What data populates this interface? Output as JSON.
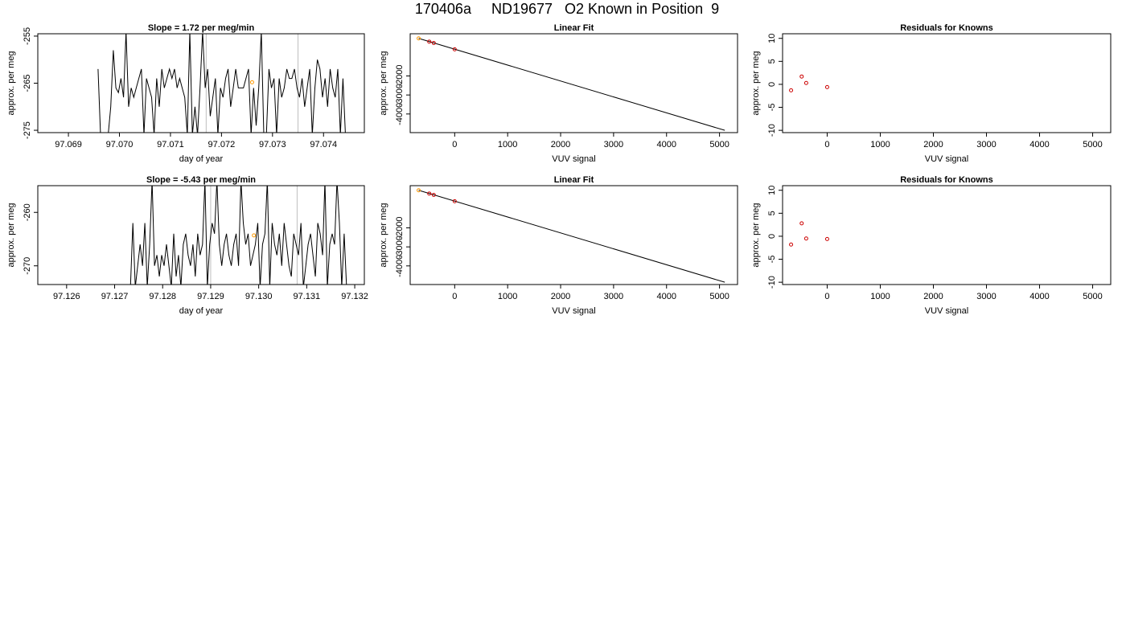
{
  "figure": {
    "title": "170406a     ND19677   O2 Known in Position  9",
    "colors": {
      "line": "#000000",
      "point_known": "#cc0000",
      "point_highlight": "#ff9900",
      "vline": "#bebebe"
    }
  },
  "chart_data": [
    {
      "type": "line",
      "title": "Slope =  1.72  per meg/min",
      "xlabel": "day of year",
      "ylabel": "approx. per meg",
      "xlim": [
        97.0684,
        97.0748
      ],
      "ylim": [
        -275.5,
        -254.5
      ],
      "xticks": [
        "97.069",
        "97.070",
        "97.071",
        "97.072",
        "97.073",
        "97.074"
      ],
      "xtick_values": [
        97.069,
        97.07,
        97.071,
        97.072,
        97.073,
        97.074
      ],
      "yticks": [
        "-255",
        "-265",
        "-275"
      ],
      "ytick_values": [
        -255,
        -265,
        -275
      ],
      "vlines": [
        97.0717,
        97.0735
      ],
      "highlight_point": [
        97.0726,
        -264.8
      ],
      "series": [
        {
          "x": [
            97.06958,
            97.06963,
            97.06968,
            97.06973,
            97.06978,
            97.06983,
            97.06988,
            97.06993,
            97.06998,
            97.07003,
            97.07008,
            97.07013,
            97.07018,
            97.07023,
            97.07028,
            97.07033,
            97.07038,
            97.07043,
            97.07048,
            97.07053,
            97.07058,
            97.07063,
            97.07068,
            97.07073,
            97.07078,
            97.07083,
            97.07088,
            97.07093,
            97.07098,
            97.07103,
            97.07108,
            97.07113,
            97.07118,
            97.07123,
            97.07128,
            97.07133,
            97.07138,
            97.07143,
            97.07148,
            97.07153,
            97.07158,
            97.07163,
            97.07168,
            97.07173,
            97.07178,
            97.07183,
            97.07188,
            97.07193,
            97.07198,
            97.07203,
            97.07208,
            97.07213,
            97.07218,
            97.07223,
            97.07228,
            97.07233,
            97.07238,
            97.07243,
            97.07248,
            97.07253,
            97.07258,
            97.07263,
            97.07268,
            97.07273,
            97.07278,
            97.07283,
            97.07288,
            97.07293,
            97.07298,
            97.07303,
            97.07308,
            97.07313,
            97.07318,
            97.07323,
            97.07328,
            97.07333,
            97.07338,
            97.07343,
            97.07348,
            97.07353,
            97.07358,
            97.07363,
            97.07368,
            97.07373,
            97.07378,
            97.07383,
            97.07388,
            97.07393,
            97.07398,
            97.07403,
            97.07408,
            97.07413,
            97.07418,
            97.07423,
            97.07428,
            97.07433,
            97.07438,
            97.07443,
            97.07448
          ],
          "y": [
            -262,
            -276,
            -276,
            -276,
            -276,
            -270,
            -258,
            -266,
            -267,
            -264,
            -268,
            -254,
            -270,
            -266,
            -268,
            -266,
            -264,
            -262,
            -276,
            -264,
            -266,
            -268,
            -276,
            -264,
            -270,
            -262,
            -266,
            -264,
            -262,
            -264,
            -262,
            -266,
            -264,
            -266,
            -268,
            -276,
            -254,
            -276,
            -270,
            -276,
            -266,
            -254,
            -266,
            -262,
            -272,
            -268,
            -264,
            -276,
            -266,
            -268,
            -264,
            -262,
            -270,
            -266,
            -262,
            -266,
            -266,
            -266,
            -264,
            -262,
            -276,
            -266,
            -274,
            -266,
            -254,
            -276,
            -276,
            -262,
            -266,
            -264,
            -276,
            -264,
            -268,
            -266,
            -262,
            -264,
            -264,
            -262,
            -266,
            -268,
            -264,
            -270,
            -266,
            -262,
            -276,
            -266,
            -260,
            -262,
            -268,
            -264,
            -270,
            -262,
            -266,
            -268,
            -262,
            -276,
            -264,
            -276,
            -276
          ]
        }
      ]
    },
    {
      "type": "scatter",
      "title": "Linear Fit",
      "xlabel": "VUV signal",
      "ylabel": "approx. per meg",
      "xlim": [
        -840,
        5340
      ],
      "ylim": [
        -4980,
        220
      ],
      "xticks": [
        "0",
        "1000",
        "2000",
        "3000",
        "4000",
        "5000"
      ],
      "xtick_values": [
        0,
        1000,
        2000,
        3000,
        4000,
        5000
      ],
      "yticks": [
        "-2000",
        "-3000",
        "-4000"
      ],
      "ytick_values": [
        -2000,
        -3000,
        -4000
      ],
      "fit_line": [
        [
          -680,
          -23
        ],
        [
          5100,
          -4860
        ]
      ],
      "points": [
        [
          -480,
          -195
        ],
        [
          -395,
          -265
        ],
        [
          0,
          -600
        ]
      ],
      "highlight_point": [
        -680,
        -23
      ]
    },
    {
      "type": "scatter",
      "title": "Residuals for Knowns",
      "xlabel": "VUV signal",
      "ylabel": "approx. per meg",
      "xlim": [
        -840,
        5340
      ],
      "ylim": [
        -10.5,
        11
      ],
      "xticks": [
        "0",
        "1000",
        "2000",
        "3000",
        "4000",
        "5000"
      ],
      "xtick_values": [
        0,
        1000,
        2000,
        3000,
        4000,
        5000
      ],
      "yticks": [
        "-10",
        "-5",
        "0",
        "5",
        "10"
      ],
      "ytick_values": [
        -10,
        -5,
        0,
        5,
        10
      ],
      "points": [
        [
          -680,
          -1.3
        ],
        [
          -480,
          1.7
        ],
        [
          -395,
          0.3
        ],
        [
          0,
          -0.6
        ]
      ]
    },
    {
      "type": "line",
      "title": "Slope =  -5.43  per meg/min",
      "xlabel": "day of year",
      "ylabel": "approx. per meg",
      "xlim": [
        97.1254,
        97.1322
      ],
      "ylim": [
        -273.5,
        -255
      ],
      "xticks": [
        "97.126",
        "97.127",
        "97.128",
        "97.129",
        "97.130",
        "97.131",
        "97.132"
      ],
      "xtick_values": [
        97.126,
        97.127,
        97.128,
        97.129,
        97.13,
        97.131,
        97.132
      ],
      "yticks": [
        "-260",
        "-270"
      ],
      "ytick_values": [
        -260,
        -270
      ],
      "vlines": [
        97.129,
        97.1308
      ],
      "highlight_point": [
        97.1299,
        -264.3
      ],
      "series": [
        {
          "x": [
            97.12728,
            97.12733,
            97.12738,
            97.12743,
            97.12748,
            97.12753,
            97.12758,
            97.12763,
            97.12768,
            97.12773,
            97.12778,
            97.12783,
            97.12788,
            97.12793,
            97.12798,
            97.12803,
            97.12808,
            97.12813,
            97.12818,
            97.12823,
            97.12828,
            97.12833,
            97.12838,
            97.12843,
            97.12848,
            97.12853,
            97.12858,
            97.12863,
            97.12868,
            97.12873,
            97.12878,
            97.12883,
            97.12888,
            97.12893,
            97.12898,
            97.12903,
            97.12908,
            97.12913,
            97.12918,
            97.12923,
            97.12928,
            97.12933,
            97.12938,
            97.12943,
            97.12948,
            97.12953,
            97.12958,
            97.12963,
            97.12968,
            97.12973,
            97.12978,
            97.12983,
            97.12988,
            97.12993,
            97.12998,
            97.13003,
            97.13008,
            97.13013,
            97.13018,
            97.13023,
            97.13028,
            97.13033,
            97.13038,
            97.13043,
            97.13048,
            97.13053,
            97.13058,
            97.13063,
            97.13068,
            97.13073,
            97.13078,
            97.13083,
            97.13088,
            97.13093,
            97.13098,
            97.13103,
            97.13108,
            97.13113,
            97.13118,
            97.13123,
            97.13128,
            97.13133,
            97.13138,
            97.13143,
            97.13148,
            97.13153,
            97.13158,
            97.13163,
            97.13168,
            97.13173,
            97.13178,
            97.13183
          ],
          "y": [
            -274,
            -274,
            -262,
            -274,
            -270,
            -266,
            -270,
            -262,
            -274,
            -266,
            -254,
            -270,
            -268,
            -272,
            -268,
            -270,
            -266,
            -270,
            -274,
            -264,
            -272,
            -268,
            -274,
            -266,
            -264,
            -268,
            -270,
            -266,
            -272,
            -264,
            -268,
            -266,
            -254,
            -274,
            -266,
            -262,
            -264,
            -254,
            -266,
            -270,
            -266,
            -264,
            -268,
            -270,
            -266,
            -264,
            -270,
            -254,
            -262,
            -266,
            -264,
            -270,
            -268,
            -266,
            -262,
            -274,
            -266,
            -264,
            -254,
            -274,
            -262,
            -266,
            -268,
            -264,
            -270,
            -262,
            -266,
            -270,
            -272,
            -264,
            -266,
            -268,
            -262,
            -274,
            -270,
            -266,
            -264,
            -268,
            -272,
            -262,
            -264,
            -268,
            -254,
            -274,
            -266,
            -264,
            -266,
            -254,
            -262,
            -274,
            -264,
            -274
          ]
        }
      ]
    },
    {
      "type": "scatter",
      "title": "Linear Fit",
      "xlabel": "VUV signal",
      "ylabel": "approx. per meg",
      "xlim": [
        -840,
        5340
      ],
      "ylim": [
        -4980,
        220
      ],
      "xticks": [
        "0",
        "1000",
        "2000",
        "3000",
        "4000",
        "5000"
      ],
      "xtick_values": [
        0,
        1000,
        2000,
        3000,
        4000,
        5000
      ],
      "yticks": [
        "-2000",
        "-3000",
        "-4000"
      ],
      "ytick_values": [
        -2000,
        -3000,
        -4000
      ],
      "fit_line": [
        [
          -680,
          -23
        ],
        [
          5100,
          -4860
        ]
      ],
      "points": [
        [
          -480,
          -195
        ],
        [
          -395,
          -265
        ],
        [
          0,
          -600
        ]
      ],
      "highlight_point": [
        -680,
        -23
      ]
    },
    {
      "type": "scatter",
      "title": "Residuals for Knowns",
      "xlabel": "VUV signal",
      "ylabel": "approx. per meg",
      "xlim": [
        -840,
        5340
      ],
      "ylim": [
        -10.5,
        11
      ],
      "xticks": [
        "0",
        "1000",
        "2000",
        "3000",
        "4000",
        "5000"
      ],
      "xtick_values": [
        0,
        1000,
        2000,
        3000,
        4000,
        5000
      ],
      "yticks": [
        "-10",
        "-5",
        "0",
        "5",
        "10"
      ],
      "ytick_values": [
        -10,
        -5,
        0,
        5,
        10
      ],
      "points": [
        [
          -680,
          -1.8
        ],
        [
          -480,
          2.8
        ],
        [
          -395,
          -0.5
        ],
        [
          0,
          -0.6
        ]
      ]
    }
  ]
}
